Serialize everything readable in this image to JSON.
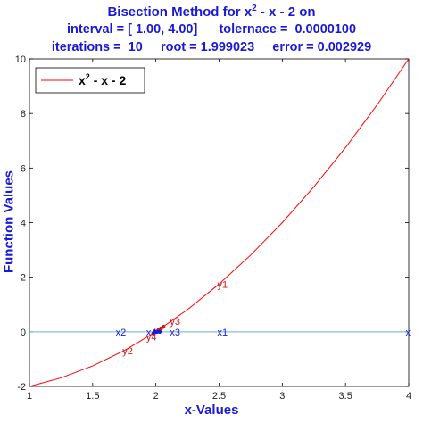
{
  "title": {
    "line1_text": "Bisection Method for x",
    "line1_sup": "2",
    "line1_rest": " - x - 2 on",
    "line2": "interval = [ 1.00, 4.00]      tolernace =  0.0000100",
    "line3": "iterations =  10     root = 1.999023     error = 0.002929"
  },
  "chart_data": {
    "type": "line",
    "xlabel": "x-Values",
    "ylabel": "Function Values",
    "xlim": [
      1,
      4
    ],
    "ylim": [
      -2,
      10
    ],
    "xticks": [
      "1",
      "1.5",
      "2",
      "2.5",
      "3",
      "3.5",
      "4"
    ],
    "yticks": [
      "-2",
      "0",
      "2",
      "4",
      "6",
      "8",
      "10"
    ],
    "grid": false,
    "legend_position": "top-left",
    "legend": {
      "text": "x",
      "sup": "2",
      "rest": " - x - 2"
    },
    "series": [
      {
        "name": "x^2 - x - 2",
        "color": "#ff0000",
        "x": [
          1.0,
          1.25,
          1.5,
          1.75,
          2.0,
          2.25,
          2.5,
          2.75,
          3.0,
          3.25,
          3.5,
          3.75,
          4.0
        ],
        "y": [
          -2.0,
          -1.6875,
          -1.25,
          -0.6875,
          0.0,
          0.8125,
          1.75,
          2.8125,
          4.0,
          5.3125,
          6.75,
          8.3125,
          10.0
        ]
      }
    ],
    "zero_line": {
      "y": 0,
      "color": "#66b3cc"
    },
    "x_iterates": [
      {
        "label": "x1",
        "x": 2.5
      },
      {
        "label": "x2",
        "x": 1.75
      },
      {
        "label": "x3",
        "x": 2.125
      },
      {
        "label": "x4",
        "x": 1.9375
      },
      {
        "label": "x",
        "x": 4.0
      }
    ],
    "y_iterates": [
      {
        "label": "y1",
        "x": 2.5,
        "y": 1.75
      },
      {
        "label": "y2",
        "x": 1.75,
        "y": -0.6875
      },
      {
        "label": "y3",
        "x": 2.125,
        "y": 0.39
      },
      {
        "label": "y4",
        "x": 1.9375,
        "y": -0.18
      }
    ],
    "colors": {
      "x_labels": "#1a1ad6",
      "y_labels": "#cc1a1a",
      "axis": "#000000"
    }
  }
}
